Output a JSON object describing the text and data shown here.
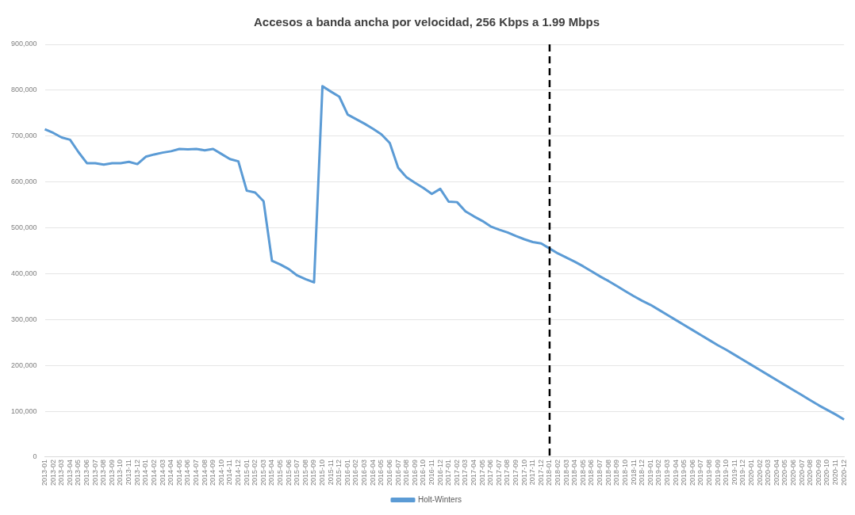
{
  "chart_data": {
    "type": "line",
    "title": "Accesos a banda ancha por velocidad, 256 Kbps a 1.99 Mbps",
    "categories": [
      "2013-01",
      "2013-02",
      "2013-03",
      "2013-04",
      "2013-05",
      "2013-06",
      "2013-07",
      "2013-08",
      "2013-09",
      "2013-10",
      "2013-11",
      "2013-12",
      "2014-01",
      "2014-02",
      "2014-03",
      "2014-04",
      "2014-05",
      "2014-06",
      "2014-07",
      "2014-08",
      "2014-09",
      "2014-10",
      "2014-11",
      "2014-12",
      "2015-01",
      "2015-02",
      "2015-03",
      "2015-04",
      "2015-05",
      "2015-06",
      "2015-07",
      "2015-08",
      "2015-09",
      "2015-10",
      "2015-11",
      "2015-12",
      "2016-01",
      "2016-02",
      "2016-03",
      "2016-04",
      "2016-05",
      "2016-06",
      "2016-07",
      "2016-08",
      "2016-09",
      "2016-10",
      "2016-11",
      "2016-12",
      "2017-01",
      "2017-02",
      "2017-03",
      "2017-04",
      "2017-05",
      "2017-06",
      "2017-07",
      "2017-08",
      "2017-09",
      "2017-10",
      "2017-11",
      "2017-12",
      "2018-01",
      "2018-02",
      "2018-03",
      "2018-04",
      "2018-05",
      "2018-06",
      "2018-07",
      "2018-08",
      "2018-09",
      "2018-10",
      "2018-11",
      "2018-12",
      "2019-01",
      "2019-02",
      "2019-03",
      "2019-04",
      "2019-05",
      "2019-06",
      "2019-07",
      "2019-08",
      "2019-09",
      "2019-10",
      "2019-11",
      "2019-12",
      "2020-01",
      "2020-02",
      "2020-03",
      "2020-04",
      "2020-05",
      "2020-06",
      "2020-07",
      "2020-08",
      "2020-09",
      "2020-10",
      "2020-11",
      "2020-12"
    ],
    "series": [
      {
        "name": "Holt-Winters",
        "color": "#5b9bd5",
        "values": [
          715000,
          707000,
          697000,
          692000,
          665000,
          641000,
          641000,
          638000,
          641000,
          641000,
          644000,
          639000,
          655000,
          660000,
          664000,
          667000,
          672000,
          671000,
          672000,
          669000,
          672000,
          661000,
          650000,
          645000,
          581000,
          577000,
          558000,
          428000,
          420000,
          410000,
          396000,
          388000,
          381000,
          809000,
          797000,
          786000,
          747000,
          737000,
          727000,
          716000,
          704000,
          685000,
          631000,
          610000,
          598000,
          587000,
          574000,
          585000,
          557000,
          556000,
          536000,
          525000,
          515000,
          503000,
          496000,
          490000,
          482000,
          475000,
          469000,
          466000,
          455000,
          444000,
          435000,
          426000,
          416000,
          405000,
          394000,
          384000,
          373000,
          362000,
          351000,
          341000,
          332000,
          321000,
          310000,
          299000,
          288000,
          277000,
          266000,
          255000,
          244000,
          234000,
          223000,
          212000,
          201000,
          190000,
          179000,
          168000,
          157000,
          146000,
          135000,
          124000,
          113000,
          103000,
          93000,
          82000
        ]
      }
    ],
    "ylim": [
      0,
      900000
    ],
    "yticks": [
      0,
      {
        "value": 100000,
        "label": "100,000"
      },
      {
        "value": 200000,
        "label": "200,000"
      },
      {
        "value": 300000,
        "label": "300,000"
      },
      {
        "value": 400000,
        "label": "400,000"
      },
      {
        "value": 500000,
        "label": "500,000"
      },
      {
        "value": 600000,
        "label": "600,000"
      },
      {
        "value": 700000,
        "label": "700,000"
      },
      {
        "value": 800000,
        "label": "800,000"
      },
      {
        "value": 900000,
        "label": "900,000"
      }
    ],
    "ref_lines": [
      {
        "axis": "x",
        "value": "2018-01",
        "color": "#000000",
        "line_style": "dashed"
      }
    ],
    "grid": "y",
    "legend": "bottom",
    "marker": "none",
    "line_style": "solid"
  }
}
